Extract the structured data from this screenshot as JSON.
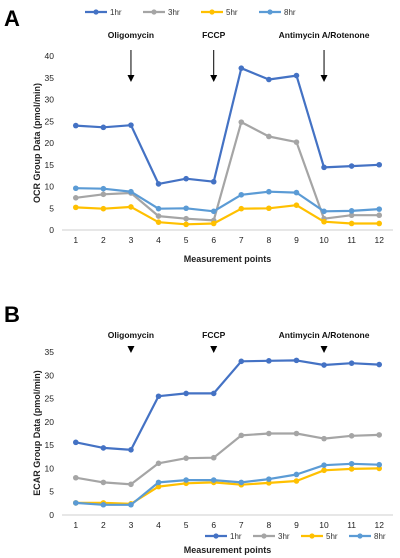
{
  "chart_data": [
    {
      "type": "line",
      "panel_label": "A",
      "title": "",
      "xlabel": "Measurement points",
      "ylabel": "OCR Group Data (pmol/min)",
      "ylim": [
        0,
        40
      ],
      "yticks": [
        0,
        5,
        10,
        15,
        20,
        25,
        30,
        35,
        40
      ],
      "x": [
        1,
        2,
        3,
        4,
        5,
        6,
        7,
        8,
        9,
        10,
        11,
        12
      ],
      "legend_position": "top",
      "grid": false,
      "series": [
        {
          "name": "1hr",
          "color": "#4472C4",
          "values": [
            24,
            23.6,
            24.1,
            10.6,
            11.8,
            11.1,
            37.2,
            34.6,
            35.5,
            14.4,
            14.7,
            15.0
          ]
        },
        {
          "name": "3hr",
          "color": "#A5A5A5",
          "values": [
            7.4,
            8.2,
            8.5,
            3.2,
            2.6,
            2.2,
            24.8,
            21.5,
            20.2,
            2.6,
            3.4,
            3.4
          ]
        },
        {
          "name": "5hr",
          "color": "#FFC000",
          "values": [
            5.2,
            4.9,
            5.3,
            1.8,
            1.3,
            1.5,
            4.9,
            5.0,
            5.7,
            1.9,
            1.5,
            1.5
          ]
        },
        {
          "name": "8hr",
          "color": "#5B9BD5",
          "values": [
            9.6,
            9.5,
            8.8,
            4.9,
            5.0,
            4.3,
            8.1,
            8.8,
            8.6,
            4.3,
            4.4,
            4.8
          ]
        }
      ],
      "annotations": [
        {
          "text": "Oligomycin",
          "x": 3
        },
        {
          "text": "FCCP",
          "x": 6
        },
        {
          "text": "Antimycin A/Rotenone",
          "x": 10
        }
      ]
    },
    {
      "type": "line",
      "panel_label": "B",
      "title": "",
      "xlabel": "Measurement points",
      "ylabel": "ECAR Group Data (pmol/min)",
      "ylim": [
        0,
        35
      ],
      "yticks": [
        0,
        5,
        10,
        15,
        20,
        25,
        30,
        35
      ],
      "x": [
        1,
        2,
        3,
        4,
        5,
        6,
        7,
        8,
        9,
        10,
        11,
        12
      ],
      "legend_position": "bottom",
      "grid": false,
      "series": [
        {
          "name": "1hr",
          "color": "#4472C4",
          "values": [
            15.6,
            14.4,
            14.0,
            25.5,
            26.1,
            26.1,
            33.0,
            33.1,
            33.2,
            32.2,
            32.6,
            32.3
          ]
        },
        {
          "name": "3hr",
          "color": "#A5A5A5",
          "values": [
            8.0,
            7.0,
            6.6,
            11.1,
            12.2,
            12.3,
            17.1,
            17.5,
            17.5,
            16.4,
            17.0,
            17.2
          ]
        },
        {
          "name": "5hr",
          "color": "#FFC000",
          "values": [
            2.6,
            2.6,
            2.4,
            6.1,
            6.8,
            7.0,
            6.5,
            6.9,
            7.3,
            9.6,
            9.9,
            10.0
          ]
        },
        {
          "name": "8hr",
          "color": "#5B9BD5",
          "values": [
            2.6,
            2.2,
            2.2,
            7.0,
            7.5,
            7.5,
            7.0,
            7.7,
            8.7,
            10.7,
            11.0,
            10.8
          ]
        }
      ],
      "annotations": [
        {
          "text": "Oligomycin",
          "x": 3
        },
        {
          "text": "FCCP",
          "x": 6
        },
        {
          "text": "Antimycin A/Rotenone",
          "x": 10
        }
      ]
    }
  ]
}
